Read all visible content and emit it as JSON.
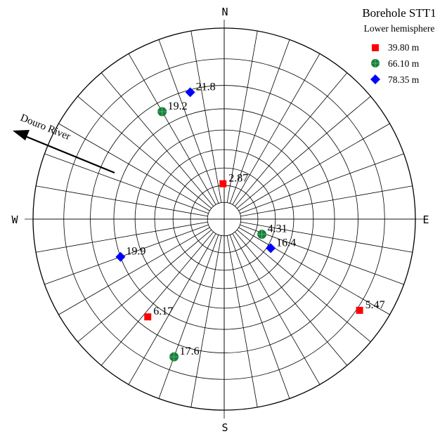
{
  "title": "Borehole STT1",
  "subtitle": "Lower hemisphere",
  "compass": {
    "north": "N",
    "south": "S",
    "east": "E",
    "west": "W"
  },
  "annotation": {
    "label": "Douro River"
  },
  "legend": [
    {
      "label": "39.80 m",
      "marker": "square",
      "color": "#ff0000"
    },
    {
      "label": "66.10 m",
      "marker": "circle",
      "color": "#1a7f3c"
    },
    {
      "label": "78.35 m",
      "marker": "diamond",
      "color": "#0000ff"
    }
  ],
  "chart_data": {
    "type": "scatter",
    "title": "Borehole STT1",
    "subtitle": "Lower hemisphere",
    "series": [
      {
        "name": "39.80 m",
        "marker": "square",
        "color": "#ff0000",
        "points": [
          {
            "label": "2.87",
            "azimuth_deg": 358,
            "plunge_deg": 69
          },
          {
            "label": "5.47",
            "azimuth_deg": 124,
            "plunge_deg": 9
          },
          {
            "label": "6.17",
            "azimuth_deg": 218,
            "plunge_deg": 24
          }
        ]
      },
      {
        "name": "66.10 m",
        "marker": "circle",
        "color": "#1a7f3c",
        "points": [
          {
            "label": "4.31",
            "azimuth_deg": 112,
            "plunge_deg": 66
          },
          {
            "label": "19.2",
            "azimuth_deg": 330,
            "plunge_deg": 24
          },
          {
            "label": "17.6",
            "azimuth_deg": 200,
            "plunge_deg": 15
          }
        ]
      },
      {
        "name": "78.35 m",
        "marker": "diamond",
        "color": "#0000ff",
        "points": [
          {
            "label": "21.8",
            "azimuth_deg": 345,
            "plunge_deg": 21
          },
          {
            "label": "16.4",
            "azimuth_deg": 122,
            "plunge_deg": 58
          },
          {
            "label": "19.9",
            "azimuth_deg": 250,
            "plunge_deg": 30
          }
        ]
      }
    ],
    "grid": {
      "plunge_step_deg": 10,
      "azimuth_step_deg": 10,
      "net": "polar equal-angle"
    },
    "annotation": {
      "label": "Douro River",
      "arrow_azimuth_deg": 300
    }
  }
}
